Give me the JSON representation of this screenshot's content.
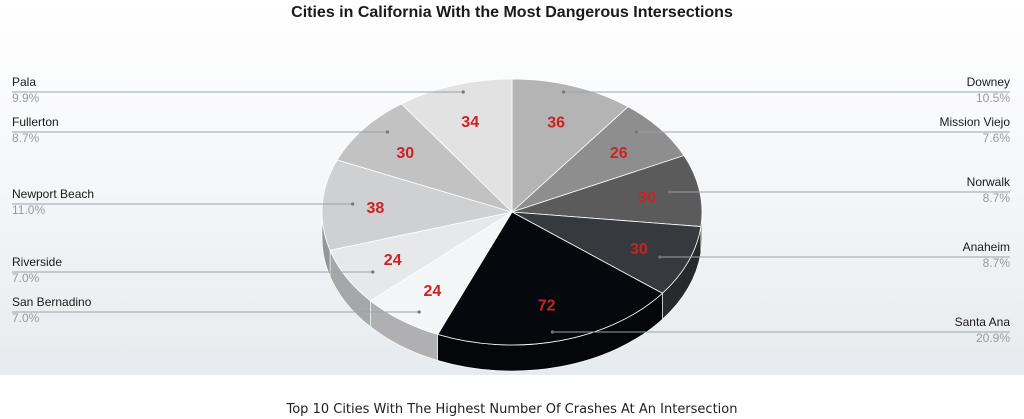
{
  "chart_data": {
    "type": "pie",
    "title": "Cities in California With the Most Dangerous Intersections",
    "slices": [
      {
        "label": "Downey",
        "value": 36,
        "percent": "10.5%",
        "color": "#b4b4b4"
      },
      {
        "label": "Mission Viejo",
        "value": 26,
        "percent": "7.6%",
        "color": "#8e8e8e"
      },
      {
        "label": "Norwalk",
        "value": 30,
        "percent": "8.7%",
        "color": "#5b5b5b"
      },
      {
        "label": "Anaheim",
        "value": 30,
        "percent": "8.7%",
        "color": "#36393e"
      },
      {
        "label": "Santa Ana",
        "value": 72,
        "percent": "20.9%",
        "color": "#05080c"
      },
      {
        "label": "San Bernadino",
        "value": 24,
        "percent": "7.0%",
        "color": "#f4f5f7"
      },
      {
        "label": "Riverside",
        "value": 24,
        "percent": "7.0%",
        "color": "#e7e8ea"
      },
      {
        "label": "Newport Beach",
        "value": 38,
        "percent": "11.0%",
        "color": "#cfd0d2"
      },
      {
        "label": "Fullerton",
        "value": 30,
        "percent": "8.7%",
        "color": "#c2c2c2"
      },
      {
        "label": "Pala",
        "value": 34,
        "percent": "9.9%",
        "color": "#e2e2e2"
      }
    ],
    "value_label_color": "#cc2222"
  },
  "caption": "Top 10 Cities With The Highest Number Of Crashes At An Intersection"
}
